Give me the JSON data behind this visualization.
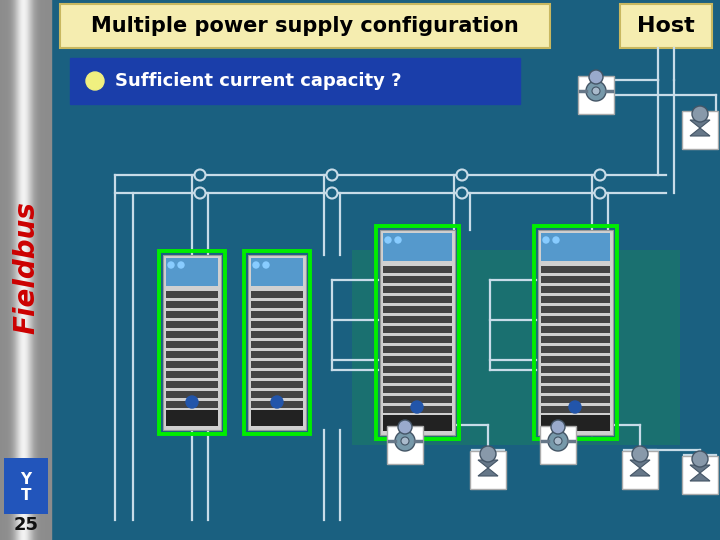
{
  "bg_color": "#1a6080",
  "title_text": "Multiple power supply configuration",
  "title_bg": "#f5edb0",
  "title_color": "#000000",
  "host_text": "Host",
  "host_bg": "#f5edb0",
  "bullet_text": "  Sufficient current capacity ?",
  "bullet_bg": "#1a3eaa",
  "bullet_color": "#ffffff",
  "bullet_dot": "#f0f080",
  "fieldbus_color": "#cc0000",
  "page_num": "25",
  "line_color": "#c8dce8",
  "green_border": "#00ee00",
  "device_bg": "#d0d0d0",
  "teal_bg": "#1a7070",
  "left_bar_mid": "#e8e8e8",
  "left_bar_dark": "#888888"
}
